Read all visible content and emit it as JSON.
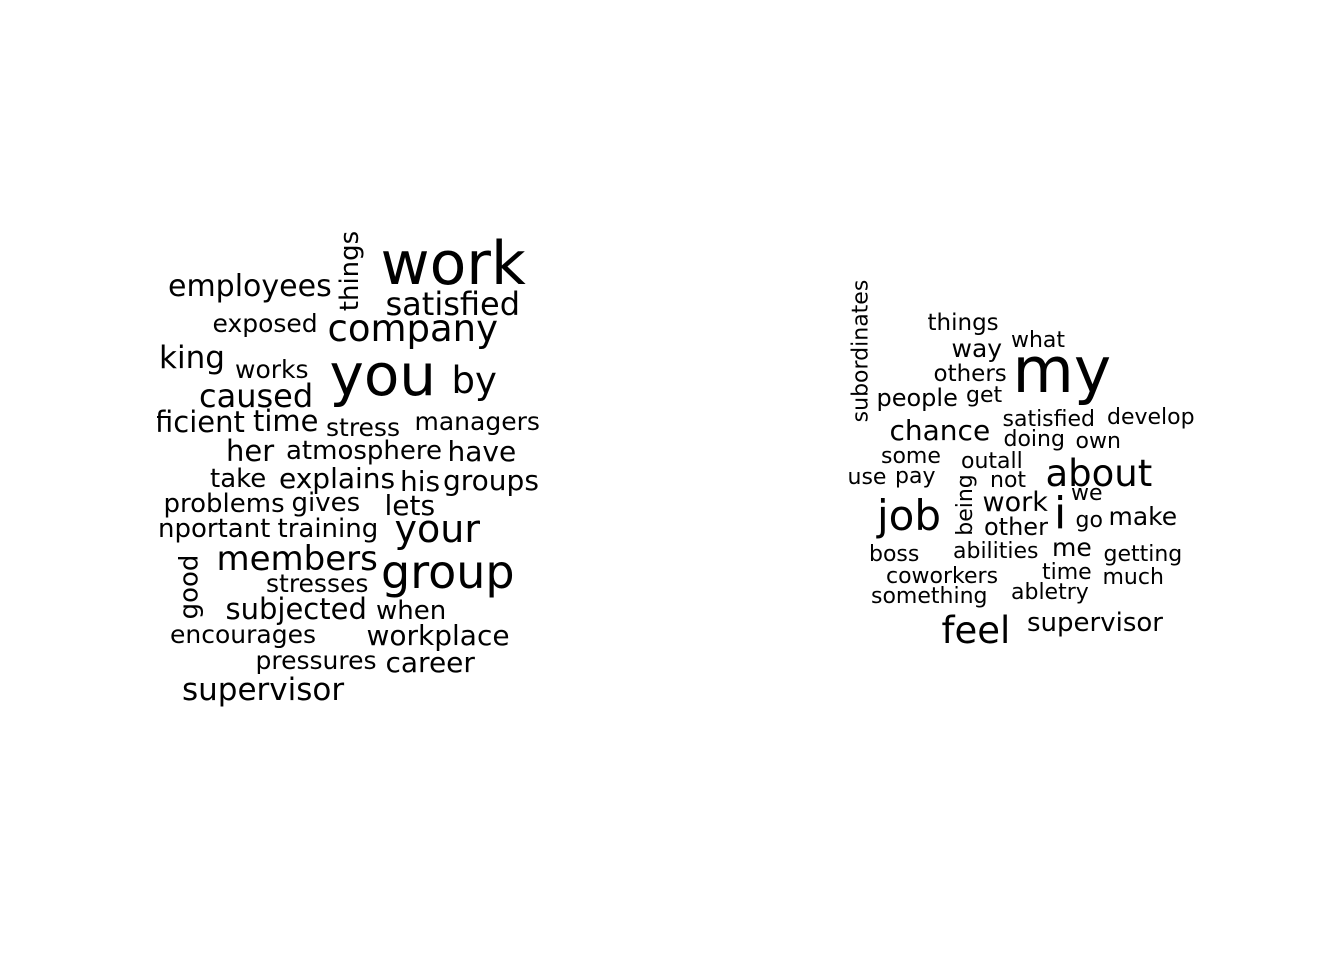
{
  "background_color": "#ffffff",
  "text_color": "#000000",
  "clouds": [
    {
      "words": [
        {
          "text": "work",
          "vertical": false
        },
        {
          "text": "employees",
          "vertical": false
        },
        {
          "text": "things",
          "vertical": true
        },
        {
          "text": "satisfied",
          "vertical": false
        },
        {
          "text": "exposed",
          "vertical": false
        },
        {
          "text": "company",
          "vertical": false
        },
        {
          "text": "king",
          "vertical": false
        },
        {
          "text": "works",
          "vertical": false
        },
        {
          "text": "you",
          "vertical": false
        },
        {
          "text": "by",
          "vertical": false
        },
        {
          "text": "caused",
          "vertical": false
        },
        {
          "text": "ficient",
          "vertical": false
        },
        {
          "text": "time",
          "vertical": false
        },
        {
          "text": "stress",
          "vertical": false
        },
        {
          "text": "managers",
          "vertical": false
        },
        {
          "text": "her",
          "vertical": false
        },
        {
          "text": "atmosphere",
          "vertical": false
        },
        {
          "text": "have",
          "vertical": false
        },
        {
          "text": "take",
          "vertical": false
        },
        {
          "text": "explains",
          "vertical": false
        },
        {
          "text": "his",
          "vertical": false
        },
        {
          "text": "groups",
          "vertical": false
        },
        {
          "text": "problems",
          "vertical": false
        },
        {
          "text": "gives",
          "vertical": false
        },
        {
          "text": "lets",
          "vertical": false
        },
        {
          "text": "nportant",
          "vertical": false
        },
        {
          "text": "training",
          "vertical": false
        },
        {
          "text": "your",
          "vertical": false
        },
        {
          "text": "good",
          "vertical": true
        },
        {
          "text": "members",
          "vertical": false
        },
        {
          "text": "group",
          "vertical": false
        },
        {
          "text": "stresses",
          "vertical": false
        },
        {
          "text": "subjected",
          "vertical": false
        },
        {
          "text": "when",
          "vertical": false
        },
        {
          "text": "encourages",
          "vertical": false
        },
        {
          "text": "workplace",
          "vertical": false
        },
        {
          "text": "pressures",
          "vertical": false
        },
        {
          "text": "career",
          "vertical": false
        },
        {
          "text": "supervisor",
          "vertical": false
        }
      ]
    },
    {
      "words": [
        {
          "text": "subordinates",
          "vertical": true
        },
        {
          "text": "things",
          "vertical": false
        },
        {
          "text": "way",
          "vertical": false
        },
        {
          "text": "what",
          "vertical": false
        },
        {
          "text": "my",
          "vertical": false
        },
        {
          "text": "others",
          "vertical": false
        },
        {
          "text": "people",
          "vertical": false
        },
        {
          "text": "get",
          "vertical": false
        },
        {
          "text": "satisfied",
          "vertical": false
        },
        {
          "text": "develop",
          "vertical": false
        },
        {
          "text": "chance",
          "vertical": false
        },
        {
          "text": "doing",
          "vertical": false
        },
        {
          "text": "own",
          "vertical": false
        },
        {
          "text": "some",
          "vertical": false
        },
        {
          "text": "outall",
          "vertical": false
        },
        {
          "text": "about",
          "vertical": false
        },
        {
          "text": "use",
          "vertical": false
        },
        {
          "text": "pay",
          "vertical": false
        },
        {
          "text": "not",
          "vertical": false
        },
        {
          "text": "being",
          "vertical": true
        },
        {
          "text": "work",
          "vertical": false
        },
        {
          "text": "we",
          "vertical": false
        },
        {
          "text": "job",
          "vertical": false
        },
        {
          "text": "i",
          "vertical": false
        },
        {
          "text": "go",
          "vertical": false
        },
        {
          "text": "make",
          "vertical": false
        },
        {
          "text": "other",
          "vertical": false
        },
        {
          "text": "boss",
          "vertical": false
        },
        {
          "text": "abilities",
          "vertical": false
        },
        {
          "text": "me",
          "vertical": false
        },
        {
          "text": "getting",
          "vertical": false
        },
        {
          "text": "coworkers",
          "vertical": false
        },
        {
          "text": "time",
          "vertical": false
        },
        {
          "text": "much",
          "vertical": false
        },
        {
          "text": "something",
          "vertical": false
        },
        {
          "text": "abletry",
          "vertical": false
        },
        {
          "text": "feel",
          "vertical": false
        },
        {
          "text": "supervisor",
          "vertical": false
        }
      ]
    }
  ]
}
